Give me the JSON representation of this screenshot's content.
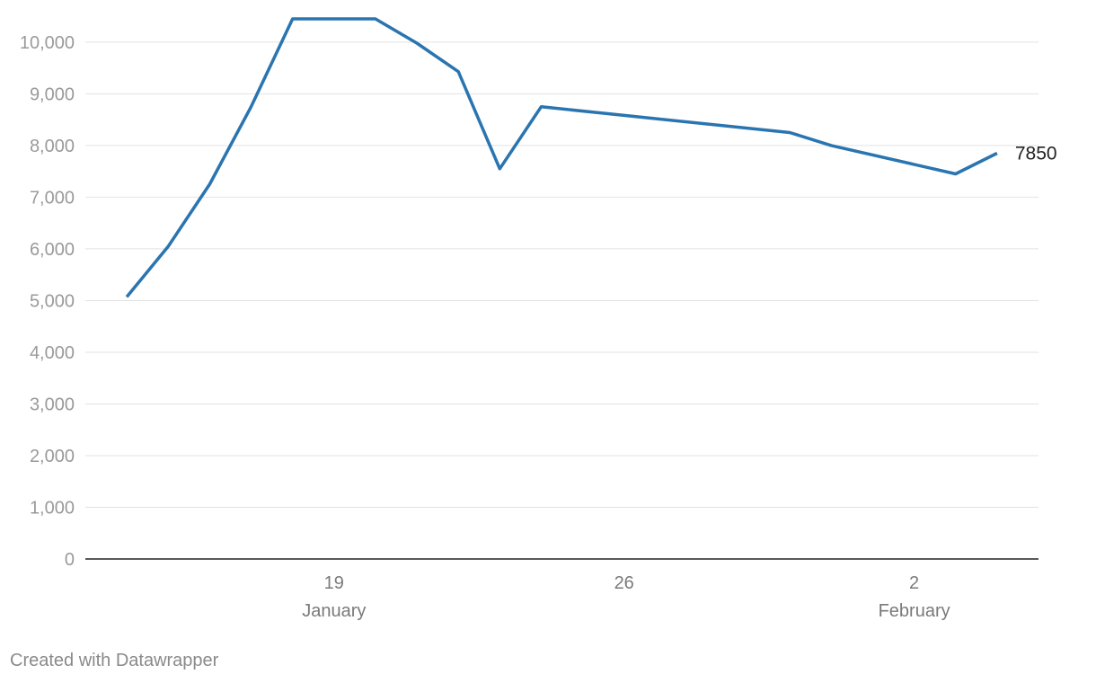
{
  "chart_data": {
    "type": "line",
    "ylim": [
      0,
      10450
    ],
    "yticks": [
      0,
      1000,
      2000,
      3000,
      4000,
      5000,
      6000,
      7000,
      8000,
      9000,
      10000
    ],
    "ytick_labels": [
      "0",
      "1,000",
      "2,000",
      "3,000",
      "4,000",
      "5,000",
      "6,000",
      "7,000",
      "8,000",
      "9,000",
      "10,000"
    ],
    "xlim": [
      "2020-01-13",
      "2020-02-05"
    ],
    "xticks": [
      {
        "date": "2020-01-19",
        "day": "19",
        "month": "January"
      },
      {
        "date": "2020-01-26",
        "day": "26",
        "month": ""
      },
      {
        "date": "2020-02-02",
        "day": "2",
        "month": "February"
      }
    ],
    "grid": true,
    "color": "#2a75b0",
    "series": [
      {
        "x": [
          "2020-01-14",
          "2020-01-15",
          "2020-01-16",
          "2020-01-17",
          "2020-01-18",
          "2020-01-19",
          "2020-01-20",
          "2020-01-21",
          "2020-01-22",
          "2020-01-23",
          "2020-01-24",
          "2020-01-30",
          "2020-01-31",
          "2020-02-03",
          "2020-02-04"
        ],
        "values": [
          5070,
          6050,
          7250,
          8750,
          10450,
          10450,
          10450,
          9980,
          9430,
          7550,
          8750,
          8250,
          8000,
          7450,
          7850
        ]
      }
    ],
    "end_label": "7850"
  },
  "footer": "Created with Datawrapper"
}
